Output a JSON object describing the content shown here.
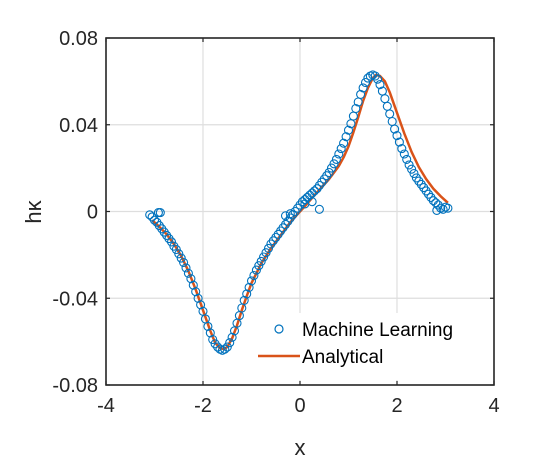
{
  "chart_data": {
    "type": "scatter",
    "xlabel": "x",
    "ylabel": "hκ",
    "xlim": [
      -4,
      4
    ],
    "ylim": [
      -0.08,
      0.08
    ],
    "xticks": [
      -4,
      -2,
      0,
      2,
      4
    ],
    "xtick_labels": [
      "-4",
      "-2",
      "0",
      "2",
      "4"
    ],
    "yticks": [
      -0.08,
      -0.04,
      0,
      0.04,
      0.08
    ],
    "ytick_labels": [
      "-0.08",
      "-0.04",
      "0",
      "0.04",
      "0.08"
    ],
    "grid": true,
    "legend_position": "bottom-right",
    "series": [
      {
        "name": "Machine Learning",
        "marker": "circle-open",
        "color": "#0072BD",
        "x": [
          -3.1,
          -3.05,
          -3.0,
          -2.95,
          -2.92,
          -2.9,
          -2.85,
          -2.8,
          -2.75,
          -2.7,
          -2.65,
          -2.6,
          -2.55,
          -2.5,
          -2.45,
          -2.4,
          -2.35,
          -2.3,
          -2.25,
          -2.2,
          -2.15,
          -2.1,
          -2.05,
          -2.0,
          -1.95,
          -1.9,
          -1.85,
          -1.8,
          -1.75,
          -1.7,
          -1.65,
          -1.6,
          -1.55,
          -1.5,
          -1.45,
          -1.4,
          -1.35,
          -1.3,
          -1.25,
          -1.2,
          -1.15,
          -1.1,
          -1.05,
          -1.0,
          -0.95,
          -0.9,
          -0.85,
          -0.8,
          -0.75,
          -0.7,
          -0.65,
          -0.6,
          -0.55,
          -0.5,
          -0.45,
          -0.4,
          -0.35,
          -0.3,
          -0.25,
          -0.2,
          -0.15,
          -0.1,
          -0.05,
          0.0,
          0.05,
          0.1,
          0.15,
          0.2,
          0.25,
          0.3,
          0.35,
          0.4,
          0.45,
          0.5,
          0.55,
          0.6,
          0.65,
          0.7,
          0.75,
          0.8,
          0.85,
          0.9,
          0.95,
          1.0,
          1.05,
          1.1,
          1.15,
          1.2,
          1.25,
          1.3,
          1.35,
          1.4,
          1.45,
          1.5,
          1.55,
          1.6,
          1.65,
          1.7,
          1.75,
          1.8,
          1.85,
          1.9,
          1.95,
          2.0,
          2.05,
          2.1,
          2.15,
          2.2,
          2.25,
          2.3,
          2.35,
          2.4,
          2.45,
          2.5,
          2.55,
          2.6,
          2.65,
          2.7,
          2.75,
          2.8,
          2.85,
          2.9,
          2.95,
          3.0,
          3.05,
          -0.2,
          -0.3,
          0.1,
          0.25,
          0.4,
          -2.88,
          2.82
        ],
        "y": [
          -0.0015,
          -0.0025,
          -0.004,
          -0.005,
          -0.0005,
          -0.0065,
          -0.008,
          -0.0095,
          -0.011,
          -0.0125,
          -0.014,
          -0.016,
          -0.0175,
          -0.0195,
          -0.0215,
          -0.0235,
          -0.026,
          -0.0285,
          -0.031,
          -0.034,
          -0.037,
          -0.04,
          -0.043,
          -0.046,
          -0.0495,
          -0.053,
          -0.056,
          -0.059,
          -0.061,
          -0.0625,
          -0.0635,
          -0.064,
          -0.0635,
          -0.0625,
          -0.0605,
          -0.058,
          -0.055,
          -0.0515,
          -0.048,
          -0.0445,
          -0.041,
          -0.038,
          -0.035,
          -0.032,
          -0.0295,
          -0.027,
          -0.025,
          -0.023,
          -0.021,
          -0.019,
          -0.017,
          -0.015,
          -0.0135,
          -0.012,
          -0.0105,
          -0.009,
          -0.0075,
          -0.006,
          -0.0045,
          -0.003,
          -0.0015,
          0.0,
          0.0015,
          0.003,
          0.0045,
          0.0055,
          0.0065,
          0.0075,
          0.0085,
          0.0095,
          0.0105,
          0.012,
          0.0135,
          0.015,
          0.0165,
          0.018,
          0.02,
          0.022,
          0.024,
          0.0265,
          0.029,
          0.0315,
          0.0345,
          0.0375,
          0.0405,
          0.044,
          0.0475,
          0.0505,
          0.054,
          0.057,
          0.0595,
          0.0615,
          0.0625,
          0.063,
          0.0625,
          0.061,
          0.0585,
          0.0555,
          0.052,
          0.0485,
          0.045,
          0.0415,
          0.038,
          0.035,
          0.032,
          0.029,
          0.0265,
          0.024,
          0.0215,
          0.0195,
          0.0175,
          0.0155,
          0.014,
          0.0125,
          0.011,
          0.0095,
          0.008,
          0.0065,
          0.005,
          0.004,
          0.003,
          0.0015,
          0.001,
          0.002,
          0.0015,
          -0.001,
          -0.002,
          0.0035,
          0.0045,
          0.001,
          -0.0005,
          0.0005
        ]
      },
      {
        "name": "Analytical",
        "marker": "line",
        "color": "#D95319",
        "x": [
          -3.05,
          -2.9,
          -2.75,
          -2.6,
          -2.45,
          -2.3,
          -2.15,
          -2.0,
          -1.85,
          -1.75,
          -1.65,
          -1.57,
          -1.5,
          -1.4,
          -1.3,
          -1.2,
          -1.1,
          -1.0,
          -0.9,
          -0.8,
          -0.7,
          -0.6,
          -0.5,
          -0.4,
          -0.3,
          -0.2,
          -0.1,
          0.0,
          0.1,
          0.2,
          0.3,
          0.4,
          0.5,
          0.6,
          0.7,
          0.8,
          0.9,
          1.0,
          1.1,
          1.2,
          1.3,
          1.4,
          1.5,
          1.57,
          1.65,
          1.75,
          1.85,
          2.0,
          2.15,
          2.3,
          2.45,
          2.6,
          2.75,
          2.9,
          3.05
        ],
        "y": [
          -0.004,
          -0.007,
          -0.0105,
          -0.015,
          -0.0205,
          -0.0275,
          -0.036,
          -0.0455,
          -0.055,
          -0.0605,
          -0.063,
          -0.0635,
          -0.0625,
          -0.0585,
          -0.0525,
          -0.0455,
          -0.039,
          -0.033,
          -0.0285,
          -0.024,
          -0.0205,
          -0.017,
          -0.014,
          -0.011,
          -0.008,
          -0.005,
          -0.0025,
          0.0,
          0.0025,
          0.005,
          0.0075,
          0.01,
          0.0125,
          0.015,
          0.018,
          0.021,
          0.025,
          0.03,
          0.0365,
          0.0435,
          0.051,
          0.057,
          0.0615,
          0.063,
          0.0625,
          0.06,
          0.055,
          0.0455,
          0.036,
          0.0275,
          0.0205,
          0.015,
          0.0105,
          0.007,
          0.004
        ]
      }
    ]
  }
}
